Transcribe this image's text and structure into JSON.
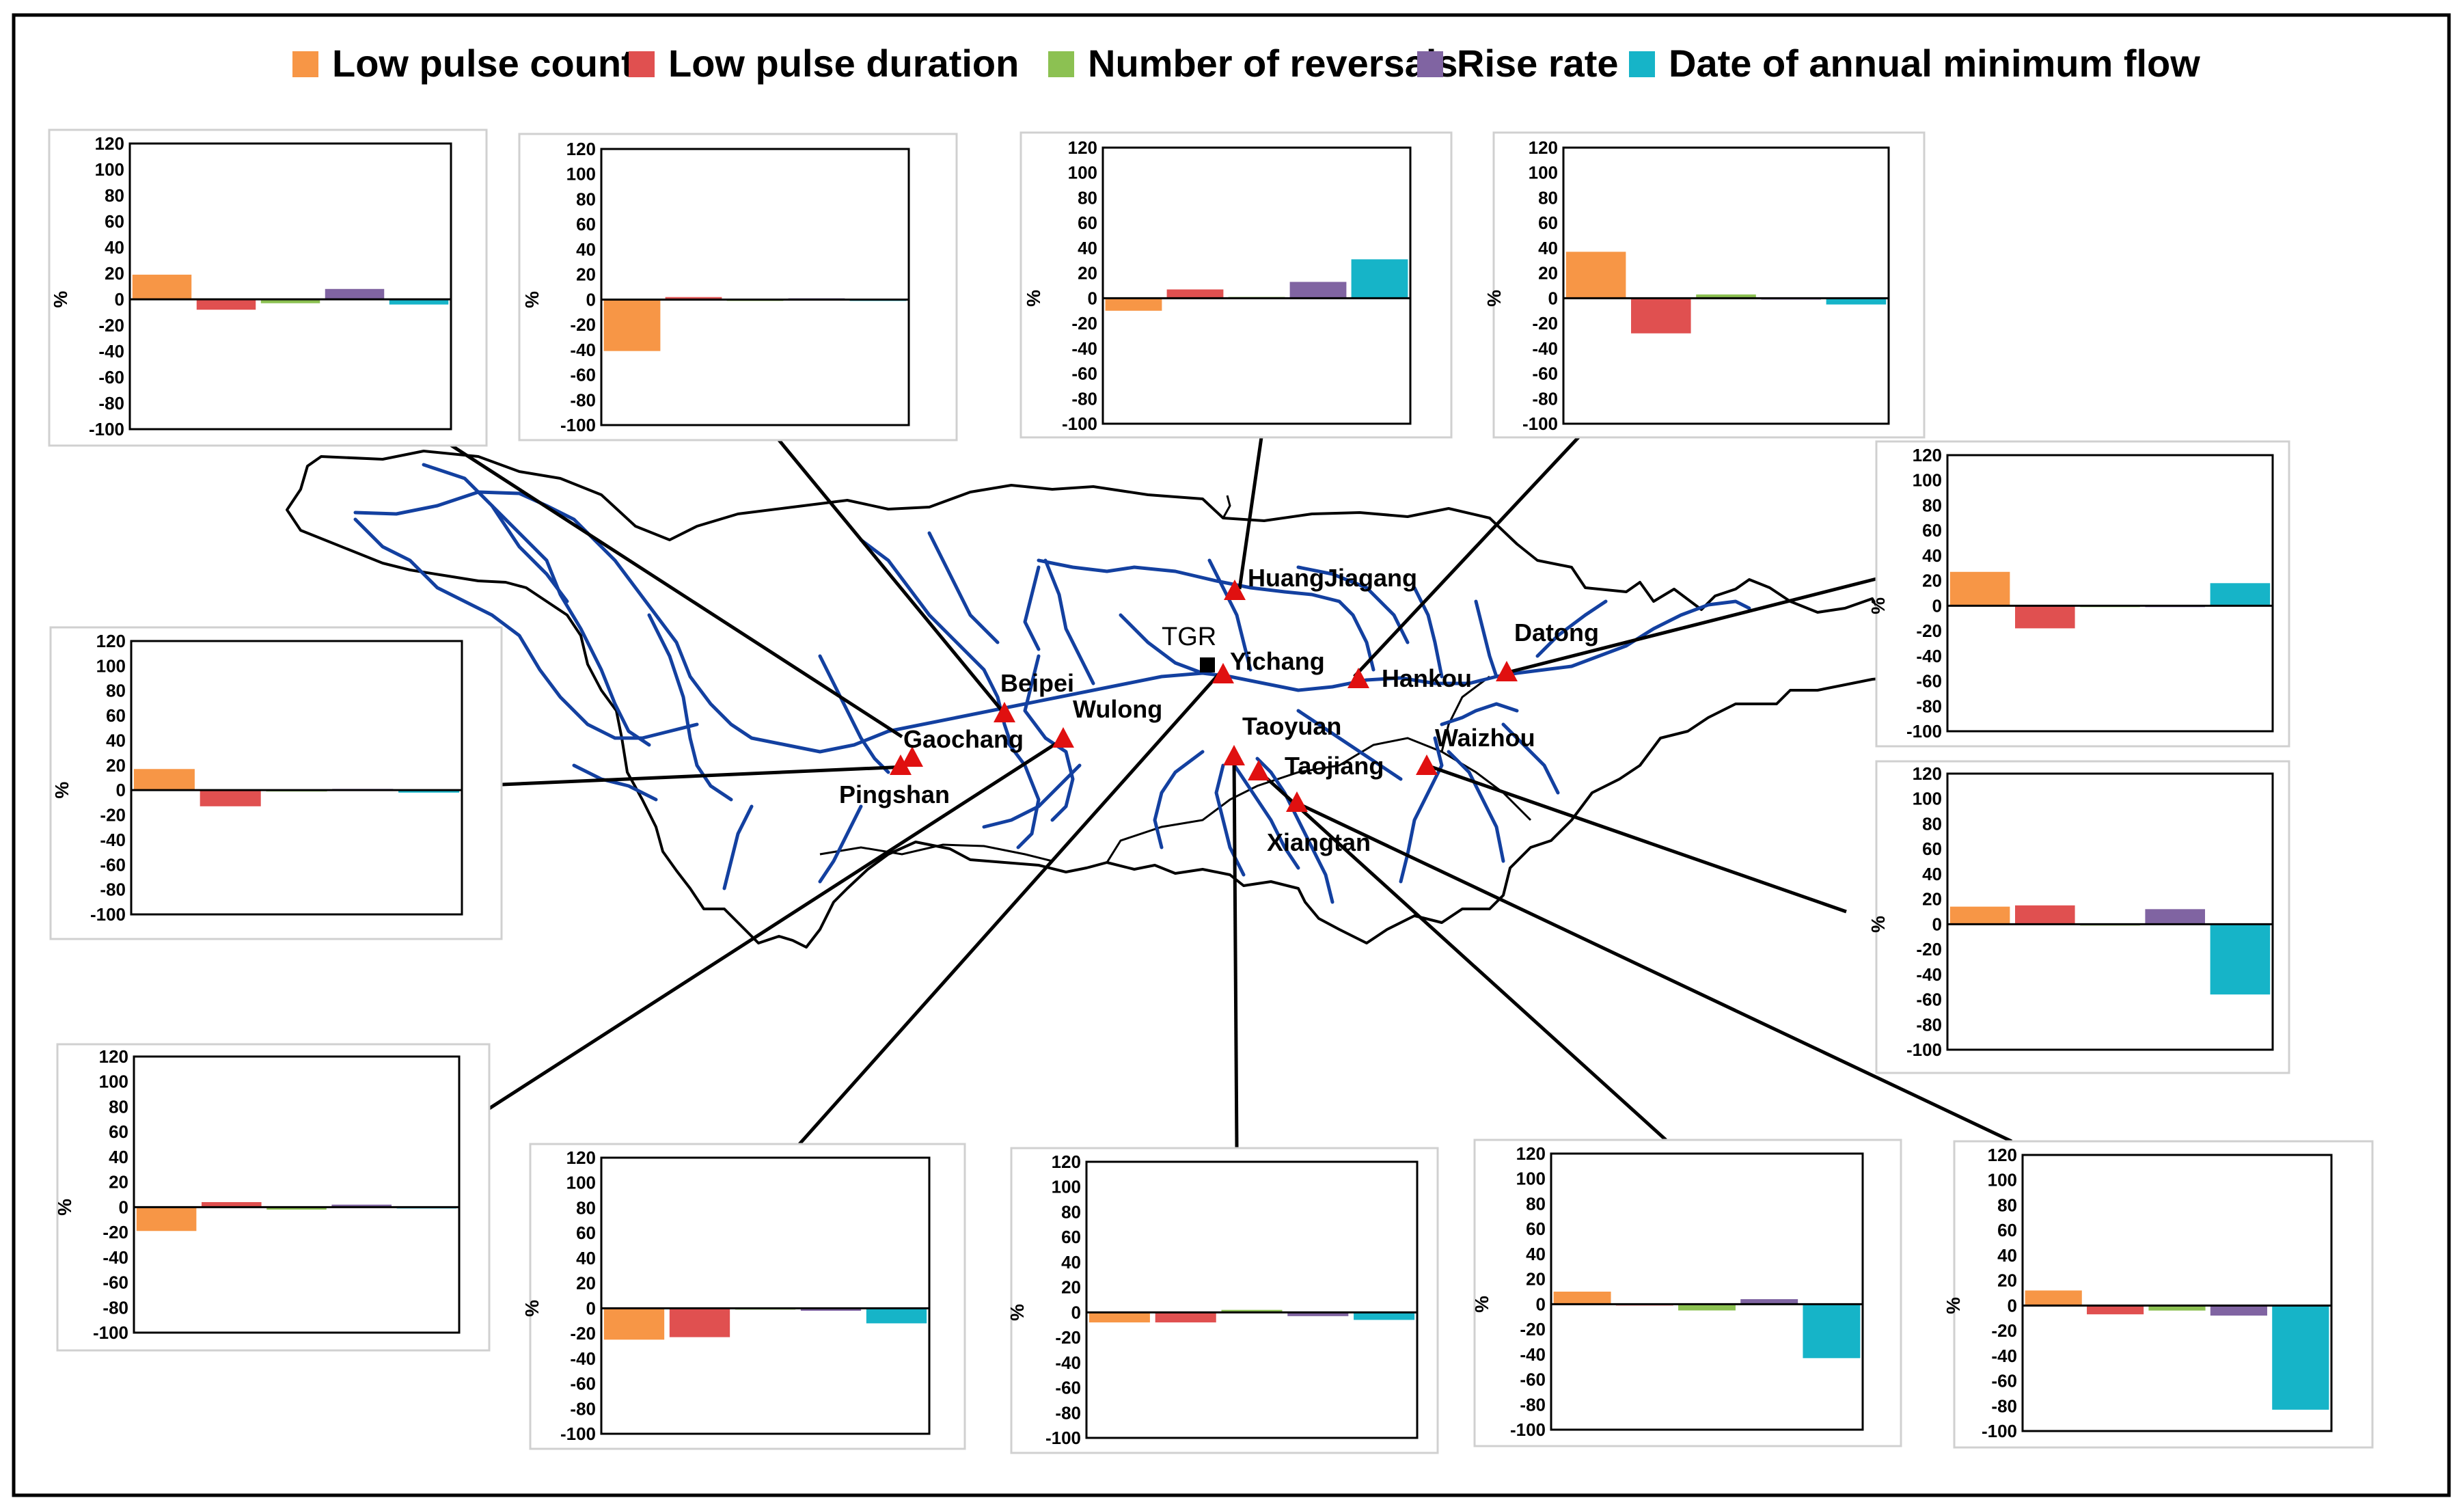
{
  "legend": {
    "items": [
      {
        "label": "Low pulse count",
        "color": "#F79646"
      },
      {
        "label": "Low pulse duration",
        "color": "#E05050"
      },
      {
        "label": "Number of reversals",
        "color": "#8CC152"
      },
      {
        "label": "Rise rate",
        "color": "#8064A2"
      },
      {
        "label": "Date of annual minimum flow",
        "color": "#16B4C8"
      }
    ]
  },
  "map": {
    "stations": [
      "Gaochang",
      "Pingshan",
      "Beipei",
      "Wulong",
      "Yichang",
      "HuangJiagang",
      "Hankou",
      "Datong",
      "Taoyuan",
      "Taojiang",
      "Xiangtan",
      "Waizhou"
    ],
    "reservoir": "TGR"
  },
  "chart_data": [
    {
      "type": "bar",
      "station": "Gaochang",
      "categories": [
        "Low pulse count",
        "Low pulse duration",
        "Number of reversals",
        "Rise rate",
        "Date of annual minimum flow"
      ],
      "values": [
        19,
        -8,
        -3,
        8,
        -4
      ],
      "ylabel": "%",
      "ylim": [
        -100,
        120
      ],
      "yticks": [
        "120",
        "100",
        "80",
        "60",
        "40",
        "20",
        "0",
        "-20",
        "-40",
        "-60",
        "-80",
        "-100"
      ]
    },
    {
      "type": "bar",
      "station": "Beipei",
      "categories": [
        "Low pulse count",
        "Low pulse duration",
        "Number of reversals",
        "Rise rate",
        "Date of annual minimum flow"
      ],
      "values": [
        -41,
        2,
        -1,
        1,
        0
      ],
      "ylabel": "%",
      "ylim": [
        -100,
        120
      ],
      "yticks": [
        "120",
        "100",
        "80",
        "60",
        "40",
        "20",
        "0",
        "-20",
        "-40",
        "-60",
        "-80",
        "-100"
      ]
    },
    {
      "type": "bar",
      "station": "HuangJiagang",
      "categories": [
        "Low pulse count",
        "Low pulse duration",
        "Number of reversals",
        "Rise rate",
        "Date of annual minimum flow"
      ],
      "values": [
        -10,
        7,
        1,
        13,
        31
      ],
      "ylabel": "%",
      "ylim": [
        -100,
        120
      ],
      "yticks": [
        "120",
        "100",
        "80",
        "60",
        "40",
        "20",
        "0",
        "-20",
        "-40",
        "-60",
        "-80",
        "-100"
      ]
    },
    {
      "type": "bar",
      "station": "Hankou",
      "categories": [
        "Low pulse count",
        "Low pulse duration",
        "Number of reversals",
        "Rise rate",
        "Date of annual minimum flow"
      ],
      "values": [
        37,
        -28,
        3,
        0,
        -5
      ],
      "ylabel": "%",
      "ylim": [
        -100,
        120
      ],
      "yticks": [
        "120",
        "100",
        "80",
        "60",
        "40",
        "20",
        "0",
        "-20",
        "-40",
        "-60",
        "-80",
        "-100"
      ]
    },
    {
      "type": "bar",
      "station": "Datong",
      "categories": [
        "Low pulse count",
        "Low pulse duration",
        "Number of reversals",
        "Rise rate",
        "Date of annual minimum flow"
      ],
      "values": [
        27,
        -18,
        -1,
        0,
        18
      ],
      "ylabel": "%",
      "ylim": [
        -100,
        120
      ],
      "yticks": [
        "120",
        "100",
        "80",
        "60",
        "40",
        "20",
        "0",
        "-20",
        "-40",
        "-60",
        "-80",
        "-100"
      ]
    },
    {
      "type": "bar",
      "station": "Pingshan",
      "categories": [
        "Low pulse count",
        "Low pulse duration",
        "Number of reversals",
        "Rise rate",
        "Date of annual minimum flow"
      ],
      "values": [
        17,
        -13,
        0,
        1,
        -2
      ],
      "ylabel": "%",
      "ylim": [
        -100,
        120
      ],
      "yticks": [
        "120",
        "100",
        "80",
        "60",
        "40",
        "20",
        "0",
        "-20",
        "-40",
        "-60",
        "-80",
        "-100"
      ]
    },
    {
      "type": "bar",
      "station": "Waizhou",
      "categories": [
        "Low pulse count",
        "Low pulse duration",
        "Number of reversals",
        "Rise rate",
        "Date of annual minimum flow"
      ],
      "values": [
        14,
        15,
        -1,
        12,
        -56
      ],
      "ylabel": "%",
      "ylim": [
        -100,
        120
      ],
      "yticks": [
        "120",
        "100",
        "80",
        "60",
        "40",
        "20",
        "0",
        "-20",
        "-40",
        "-60",
        "-80",
        "-100"
      ]
    },
    {
      "type": "bar",
      "station": "Wulong",
      "categories": [
        "Low pulse count",
        "Low pulse duration",
        "Number of reversals",
        "Rise rate",
        "Date of annual minimum flow"
      ],
      "values": [
        -19,
        4,
        -2,
        2,
        0
      ],
      "ylabel": "%",
      "ylim": [
        -100,
        120
      ],
      "yticks": [
        "120",
        "100",
        "80",
        "60",
        "40",
        "20",
        "0",
        "-20",
        "-40",
        "-60",
        "-80",
        "-100"
      ]
    },
    {
      "type": "bar",
      "station": "Yichang",
      "categories": [
        "Low pulse count",
        "Low pulse duration",
        "Number of reversals",
        "Rise rate",
        "Date of annual minimum flow"
      ],
      "values": [
        -25,
        -23,
        0,
        -2,
        -12
      ],
      "ylabel": "%",
      "ylim": [
        -100,
        120
      ],
      "yticks": [
        "120",
        "100",
        "80",
        "60",
        "40",
        "20",
        "0",
        "-20",
        "-40",
        "-60",
        "-80",
        "-100"
      ]
    },
    {
      "type": "bar",
      "station": "Taoyuan",
      "categories": [
        "Low pulse count",
        "Low pulse duration",
        "Number of reversals",
        "Rise rate",
        "Date of annual minimum flow"
      ],
      "values": [
        -8,
        -8,
        2,
        -3,
        -6
      ],
      "ylabel": "%",
      "ylim": [
        -100,
        120
      ],
      "yticks": [
        "120",
        "100",
        "80",
        "60",
        "40",
        "20",
        "0",
        "-20",
        "-40",
        "-60",
        "-80",
        "-100"
      ]
    },
    {
      "type": "bar",
      "station": "Taojiang",
      "categories": [
        "Low pulse count",
        "Low pulse duration",
        "Number of reversals",
        "Rise rate",
        "Date of annual minimum flow"
      ],
      "values": [
        10,
        -1,
        -5,
        4,
        -43
      ],
      "ylabel": "%",
      "ylim": [
        -100,
        120
      ],
      "yticks": [
        "120",
        "100",
        "80",
        "60",
        "40",
        "20",
        "0",
        "-20",
        "-40",
        "-60",
        "-80",
        "-100"
      ]
    },
    {
      "type": "bar",
      "station": "Xiangtan",
      "categories": [
        "Low pulse count",
        "Low pulse duration",
        "Number of reversals",
        "Rise rate",
        "Date of annual minimum flow"
      ],
      "values": [
        12,
        -7,
        -4,
        -8,
        -83
      ],
      "ylabel": "%",
      "ylim": [
        -100,
        120
      ],
      "yticks": [
        "120",
        "100",
        "80",
        "60",
        "40",
        "20",
        "0",
        "-20",
        "-40",
        "-60",
        "-80",
        "-100"
      ]
    }
  ]
}
